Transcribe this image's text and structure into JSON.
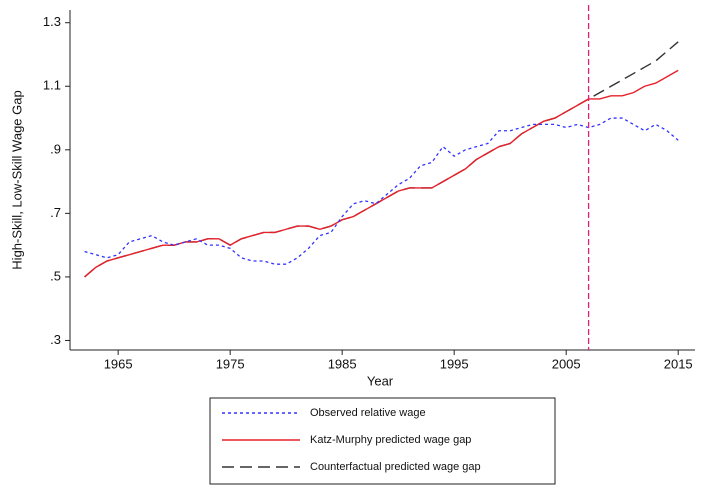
{
  "chart_data": {
    "type": "line",
    "x_label": "Year",
    "y_label": "High-Skill, Low-Skill Wage Gap",
    "x": [
      1962,
      1963,
      1964,
      1965,
      1966,
      1967,
      1968,
      1969,
      1970,
      1971,
      1972,
      1973,
      1974,
      1975,
      1976,
      1977,
      1978,
      1979,
      1980,
      1981,
      1982,
      1983,
      1984,
      1985,
      1986,
      1987,
      1988,
      1989,
      1990,
      1991,
      1992,
      1993,
      1994,
      1995,
      1996,
      1997,
      1998,
      1999,
      2000,
      2001,
      2002,
      2003,
      2004,
      2005,
      2006,
      2007,
      2008,
      2009,
      2010,
      2011,
      2012,
      2013,
      2014,
      2015
    ],
    "series": [
      {
        "name": "Observed relative wage",
        "color": "#3333ff",
        "style": "dotted",
        "values": [
          0.58,
          0.57,
          0.56,
          0.57,
          0.61,
          0.62,
          0.63,
          0.61,
          0.6,
          0.61,
          0.62,
          0.6,
          0.6,
          0.59,
          0.56,
          0.55,
          0.55,
          0.54,
          0.54,
          0.56,
          0.59,
          0.63,
          0.64,
          0.69,
          0.73,
          0.74,
          0.73,
          0.76,
          0.79,
          0.81,
          0.85,
          0.86,
          0.91,
          0.88,
          0.9,
          0.91,
          0.92,
          0.96,
          0.96,
          0.97,
          0.98,
          0.98,
          0.98,
          0.97,
          0.98,
          0.97,
          0.98,
          1.0,
          1.0,
          0.98,
          0.96,
          0.98,
          0.96,
          0.93
        ]
      },
      {
        "name": "Katz-Murphy predicted wage gap",
        "color": "#e8202a",
        "style": "solid",
        "values": [
          0.5,
          0.53,
          0.55,
          0.56,
          0.57,
          0.58,
          0.59,
          0.6,
          0.6,
          0.61,
          0.61,
          0.62,
          0.62,
          0.6,
          0.62,
          0.63,
          0.64,
          0.64,
          0.65,
          0.66,
          0.66,
          0.65,
          0.66,
          0.68,
          0.69,
          0.71,
          0.73,
          0.75,
          0.77,
          0.78,
          0.78,
          0.78,
          0.8,
          0.82,
          0.84,
          0.87,
          0.89,
          0.91,
          0.92,
          0.95,
          0.97,
          0.99,
          1.0,
          1.02,
          1.04,
          1.06,
          1.06,
          1.07,
          1.07,
          1.08,
          1.1,
          1.11,
          1.13,
          1.15
        ]
      },
      {
        "name": "Counterfactual predicted wage gap",
        "color": "#333333",
        "style": "dashed",
        "values": [
          0.5,
          0.53,
          0.55,
          0.56,
          0.57,
          0.58,
          0.59,
          0.6,
          0.6,
          0.61,
          0.61,
          0.62,
          0.62,
          0.6,
          0.62,
          0.63,
          0.64,
          0.64,
          0.65,
          0.66,
          0.66,
          0.65,
          0.66,
          0.68,
          0.69,
          0.71,
          0.73,
          0.75,
          0.77,
          0.78,
          0.78,
          0.78,
          0.8,
          0.82,
          0.84,
          0.87,
          0.89,
          0.91,
          0.92,
          0.95,
          0.97,
          0.99,
          1.0,
          1.02,
          1.04,
          1.06,
          1.08,
          1.1,
          1.12,
          1.14,
          1.16,
          1.18,
          1.21,
          1.24
        ]
      }
    ],
    "vline": {
      "x": 2007,
      "color": "#e0207a"
    },
    "xlim": [
      1960.7,
      2016.5
    ],
    "xticks": [
      1965,
      1975,
      1985,
      1995,
      2005,
      2015
    ],
    "ylim": [
      0.27,
      1.34
    ],
    "yticks": [
      {
        "value": 0.3,
        "label": ".3"
      },
      {
        "value": 0.5,
        "label": ".5"
      },
      {
        "value": 0.7,
        "label": ".7"
      },
      {
        "value": 0.9,
        "label": ".9"
      },
      1.1,
      1.3
    ],
    "legend": "bottom"
  }
}
